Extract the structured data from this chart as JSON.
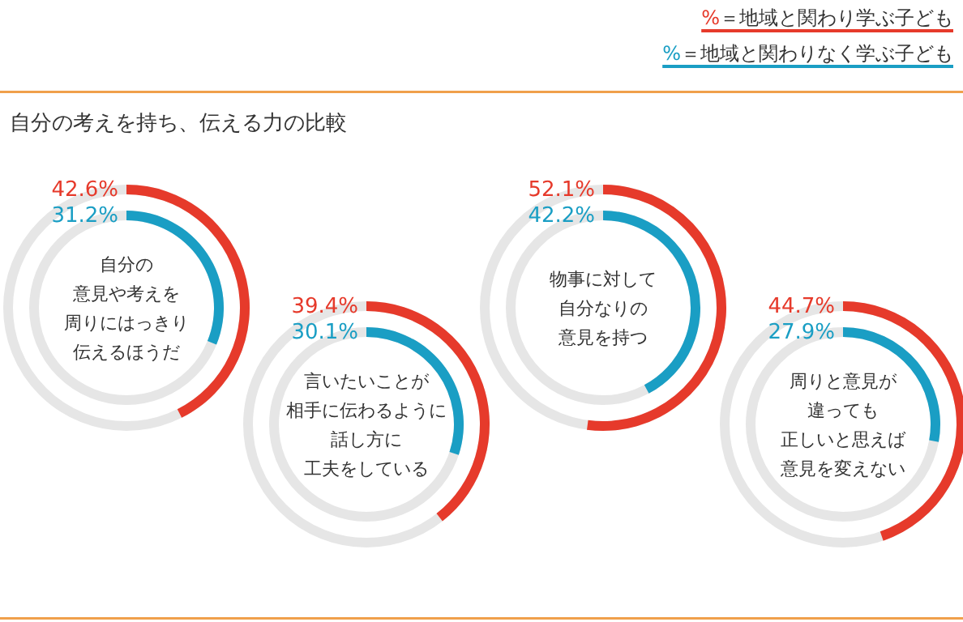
{
  "chart_data": [
    {
      "type": "donut",
      "title": "自分の考えを持ち、伝える力の比較",
      "legend": "top right",
      "data_labels": true,
      "annotations": [
        "自分の",
        "意見や考えを",
        "周りにはっきり",
        "伝えるほうだ"
      ],
      "series": [
        {
          "name": "%＝地域と関わり学ぶ子ども",
          "color": "#e63a2b",
          "values": [
            42.6
          ],
          "value_labels": [
            "42.6%"
          ]
        },
        {
          "name": "%＝地域と関わりなく学ぶ子ども",
          "color": "#1a9ec4",
          "values": [
            31.2
          ],
          "value_labels": [
            "31.2%"
          ]
        }
      ]
    },
    {
      "type": "donut",
      "data_labels": true,
      "annotations": [
        "言いたいことが",
        "相手に伝わるように",
        "話し方に",
        "工夫をしている"
      ],
      "series": [
        {
          "color": "#e63a2b",
          "values": [
            39.4
          ],
          "value_labels": [
            "39.4%"
          ]
        },
        {
          "color": "#1a9ec4",
          "values": [
            30.1
          ],
          "value_labels": [
            "30.1%"
          ]
        }
      ]
    },
    {
      "type": "donut",
      "data_labels": true,
      "annotations": [
        "物事に対して",
        "自分なりの",
        "意見を持つ"
      ],
      "series": [
        {
          "color": "#e63a2b",
          "values": [
            52.1
          ],
          "value_labels": [
            "52.1%"
          ]
        },
        {
          "color": "#1a9ec4",
          "values": [
            42.2
          ],
          "value_labels": [
            "42.2%"
          ]
        }
      ]
    },
    {
      "type": "donut",
      "data_labels": true,
      "annotations": [
        "周りと意見が",
        "違っても",
        "正しいと思えば",
        "意見を変えない"
      ],
      "series": [
        {
          "color": "#e63a2b",
          "values": [
            44.7
          ],
          "value_labels": [
            "44.7%"
          ]
        },
        {
          "color": "#1a9ec4",
          "values": [
            27.9
          ],
          "value_labels": [
            "27.9%"
          ]
        }
      ]
    }
  ]
}
